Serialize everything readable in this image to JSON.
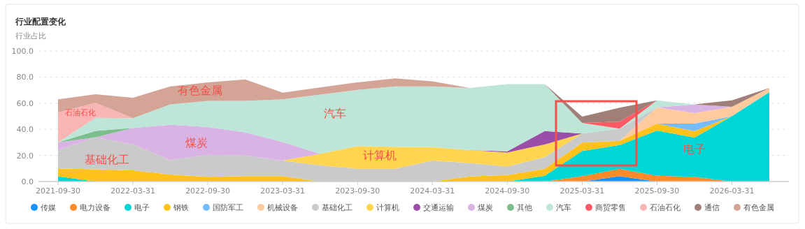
{
  "chart_data": {
    "type": "area",
    "stacked": true,
    "title": "行业配置变化",
    "ylabel": "行业占比",
    "categories": [
      "2021-09-30",
      null,
      "2022-03-31",
      null,
      "2022-09-30",
      null,
      "2023-03-31",
      null,
      "2023-09-30",
      null,
      "2024-03-31",
      null,
      "2024-09-30",
      null,
      "2025-03-31",
      null,
      "2025-09-30",
      null,
      "2026-03-31",
      null
    ],
    "ylim": [
      0,
      100
    ],
    "yticks": [
      {
        "value": 0,
        "label": "0.0"
      },
      {
        "value": 20,
        "label": "20.0"
      },
      {
        "value": 40,
        "label": "40.0"
      },
      {
        "value": 60,
        "label": "60.0"
      },
      {
        "value": 80,
        "label": "80.0"
      },
      {
        "value": 100,
        "label": "100.0"
      }
    ],
    "grid": "y",
    "legend": "bottom",
    "annotations": [
      "有色金属",
      "石油石化",
      "汽车",
      "煤炭",
      "基础化工",
      "计算机",
      "电子"
    ],
    "series": [
      {
        "name": "传媒",
        "color": "#1890ff",
        "values": [
          null,
          null,
          null,
          null,
          null,
          null,
          null,
          null,
          null,
          null,
          null,
          null,
          null,
          null,
          0,
          4.1,
          0,
          null,
          null,
          null
        ]
      },
      {
        "name": "电力设备",
        "color": "#ff8a2a",
        "values": [
          null,
          null,
          null,
          null,
          null,
          null,
          null,
          null,
          null,
          null,
          null,
          null,
          null,
          0,
          4.1,
          5.7,
          4.4,
          3.6,
          0,
          null
        ]
      },
      {
        "name": "电子",
        "color": "#00d6d6",
        "values": [
          4,
          0,
          null,
          null,
          null,
          null,
          null,
          null,
          null,
          null,
          null,
          null,
          0,
          4.4,
          19.3,
          18.1,
          34.7,
          30.1,
          50.1,
          68.4
        ]
      },
      {
        "name": "钢铁",
        "color": "#ffc21a",
        "values": [
          6,
          9.4,
          8.5,
          5.3,
          3.6,
          4.1,
          4.1,
          0,
          null,
          null,
          0,
          3.9,
          5,
          5.4,
          6.4,
          3.2,
          5.3,
          5,
          0,
          null
        ]
      },
      {
        "name": "国防军工",
        "color": "#74bcff",
        "values": [
          null,
          null,
          null,
          null,
          null,
          null,
          null,
          null,
          null,
          null,
          null,
          null,
          null,
          null,
          null,
          null,
          0,
          5.7,
          0,
          null
        ]
      },
      {
        "name": "机械设备",
        "color": "#ffcb9e",
        "values": [
          null,
          null,
          null,
          null,
          null,
          null,
          null,
          null,
          null,
          null,
          null,
          null,
          null,
          null,
          null,
          0,
          12.4,
          8,
          7.1,
          3.2
        ]
      },
      {
        "name": "基础化工",
        "color": "#cacaca",
        "values": [
          14,
          24.4,
          20,
          11.2,
          16.8,
          15.8,
          11.9,
          12.4,
          9.8,
          9.8,
          16,
          10.3,
          6.5,
          8.9,
          7,
          9.4,
          0,
          null,
          null,
          null
        ]
      },
      {
        "name": "计算机",
        "color": "#ffd54f",
        "values": [
          null,
          null,
          null,
          null,
          null,
          null,
          0,
          8.9,
          17.4,
          16.8,
          10.3,
          9.8,
          10.7,
          9.7,
          0,
          null,
          null,
          null,
          null,
          null
        ]
      },
      {
        "name": "交通运输",
        "color": "#9b4ea8",
        "values": [
          null,
          null,
          null,
          null,
          null,
          null,
          null,
          null,
          null,
          null,
          null,
          0,
          0.9,
          10.3,
          0,
          null,
          null,
          null,
          null,
          null
        ]
      },
      {
        "name": "煤炭",
        "color": "#d9b3e3",
        "values": [
          6,
          0,
          12.5,
          27,
          21.3,
          17.8,
          14.2,
          0,
          null,
          null,
          null,
          null,
          null,
          null,
          null,
          null,
          0,
          6.6,
          0,
          null
        ]
      },
      {
        "name": "其他",
        "color": "#7dbf8c",
        "values": [
          0,
          5,
          0,
          null,
          null,
          null,
          null,
          null,
          null,
          null,
          null,
          null,
          null,
          null,
          null,
          null,
          null,
          null,
          null,
          null
        ]
      },
      {
        "name": "汽车",
        "color": "#bde5d8",
        "values": [
          0,
          10,
          7.5,
          15.6,
          20.1,
          24.1,
          32.8,
          45.3,
          43,
          46.2,
          46.5,
          47.6,
          51.5,
          35.9,
          8.1,
          0,
          5.4,
          0,
          null,
          null
        ]
      },
      {
        "name": "商贸零售",
        "color": "#ff5a64",
        "values": [
          null,
          null,
          null,
          null,
          null,
          null,
          null,
          null,
          null,
          null,
          null,
          null,
          null,
          null,
          0,
          5.3,
          0,
          null,
          null,
          null
        ]
      },
      {
        "name": "石油石化",
        "color": "#f9b4b4",
        "values": [
          23,
          11.5,
          0,
          null,
          null,
          null,
          null,
          null,
          null,
          null,
          null,
          null,
          null,
          null,
          null,
          null,
          null,
          null,
          null,
          null
        ]
      },
      {
        "name": "通信",
        "color": "#a07f78",
        "values": [
          null,
          null,
          null,
          null,
          null,
          null,
          null,
          null,
          null,
          null,
          null,
          null,
          null,
          0,
          4.8,
          10.7,
          0,
          0,
          5,
          0
        ]
      },
      {
        "name": "有色金属",
        "color": "#d4a596",
        "values": [
          10,
          6.5,
          15.7,
          13.7,
          14.2,
          16.4,
          5,
          5.4,
          5.8,
          6.2,
          3.9,
          0,
          null,
          null,
          null,
          null,
          null,
          null,
          null,
          null
        ]
      }
    ]
  }
}
